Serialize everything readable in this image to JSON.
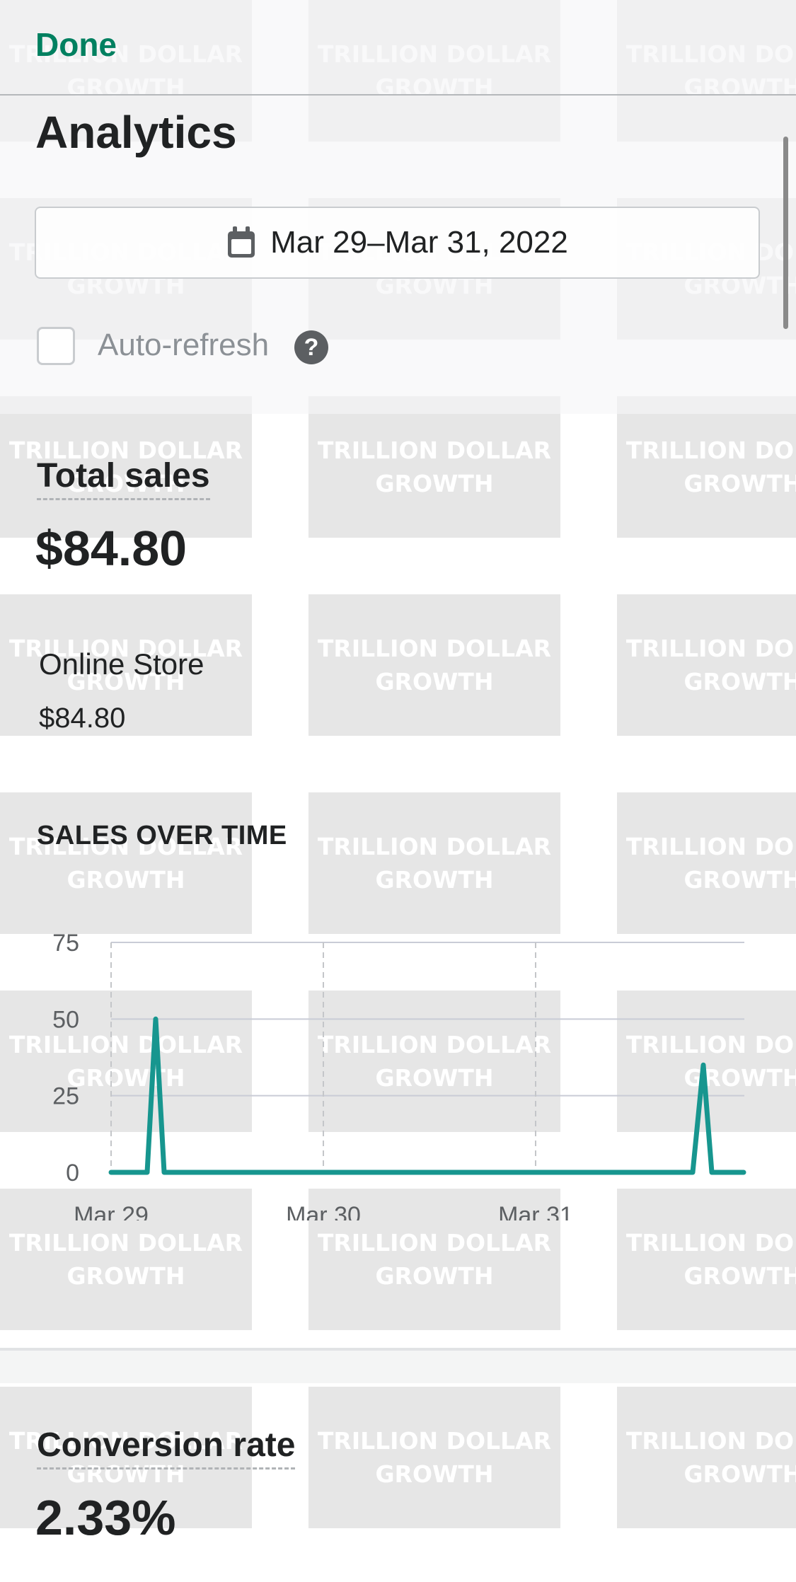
{
  "watermark": {
    "text": "TRILLION DOLLAR\nGROWTH"
  },
  "header": {
    "done_label": "Done",
    "title": "Analytics"
  },
  "date_range": {
    "label": "Mar 29–Mar 31, 2022",
    "icon": "calendar-icon"
  },
  "auto_refresh": {
    "label": "Auto-refresh",
    "checked": false,
    "help_icon": "question-mark-icon"
  },
  "total_sales": {
    "title": "Total sales",
    "value": "$84.80",
    "channels": [
      {
        "name": "Online Store",
        "value": "$84.80"
      }
    ]
  },
  "chart_data": {
    "type": "line",
    "title": "SALES OVER TIME",
    "xlabel": "",
    "ylabel": "",
    "x_ticks": [
      "Mar 29",
      "Mar 30",
      "Mar 31"
    ],
    "y_ticks": [
      "0",
      "25",
      "50",
      "75"
    ],
    "ylim": [
      0,
      75
    ],
    "grid": true,
    "series_color": "#17968f",
    "series": [
      {
        "values": [
          [
            0.0,
            0
          ],
          [
            0.17,
            0
          ],
          [
            0.21,
            50
          ],
          [
            0.25,
            0
          ],
          [
            2.74,
            0
          ],
          [
            2.79,
            35
          ],
          [
            2.83,
            0
          ],
          [
            2.98,
            0
          ]
        ]
      }
    ]
  },
  "conversion_rate": {
    "title": "Conversion rate",
    "value": "2.33%"
  },
  "colors": {
    "accent": "#008060",
    "text": "#202223",
    "muted": "#8c9196",
    "chart_line": "#17968f"
  }
}
